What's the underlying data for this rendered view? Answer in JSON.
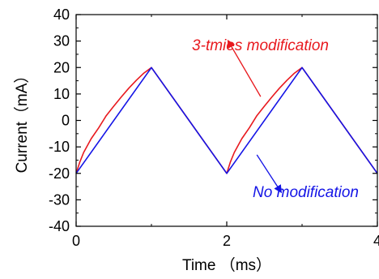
{
  "chart_data": {
    "type": "line",
    "title": "",
    "xlabel": "Time （ms）",
    "ylabel": "Current（mA）",
    "xlim": [
      0,
      4
    ],
    "ylim": [
      -40,
      40
    ],
    "xticks": [
      "0",
      "2",
      "4"
    ],
    "yticks": [
      "40",
      "30",
      "20",
      "10",
      "0",
      "-10",
      "-20",
      "-30",
      "-40"
    ],
    "grid": false,
    "series": [
      {
        "name": "3-tmies modification",
        "color": "#e8191e",
        "shape": "concave-rise",
        "x": [
          0,
          0.05,
          0.1,
          0.2,
          0.3,
          0.4,
          0.5,
          0.6,
          0.7,
          0.8,
          0.9,
          1.0,
          1.5,
          2.0,
          2.05,
          2.1,
          2.2,
          2.3,
          2.4,
          2.5,
          2.6,
          2.7,
          2.8,
          2.9,
          3.0,
          3.5,
          4.0
        ],
        "y": [
          -20,
          -15.6,
          -12.1,
          -6.9,
          -2.8,
          1.8,
          5.4,
          8.9,
          12.2,
          15.2,
          17.9,
          20,
          0,
          -20,
          -15.6,
          -12.1,
          -6.9,
          -2.8,
          1.8,
          5.4,
          8.9,
          12.2,
          15.2,
          17.9,
          20,
          0,
          -20
        ]
      },
      {
        "name": "No modification",
        "color": "#1414e6",
        "shape": "linear",
        "x": [
          0,
          1.0,
          2.0,
          3.0,
          4.0
        ],
        "y": [
          -20,
          20,
          -20,
          20,
          -20
        ]
      }
    ],
    "annotations": [
      {
        "text": "3-tmies modification",
        "color": "#e8191e",
        "arrow_from": [
          2.45,
          9
        ],
        "arrow_to": [
          2.02,
          30
        ]
      },
      {
        "text": "No modification",
        "color": "#1414e6",
        "arrow_from": [
          2.4,
          -13
        ],
        "arrow_to": [
          2.72,
          -27
        ]
      }
    ]
  }
}
